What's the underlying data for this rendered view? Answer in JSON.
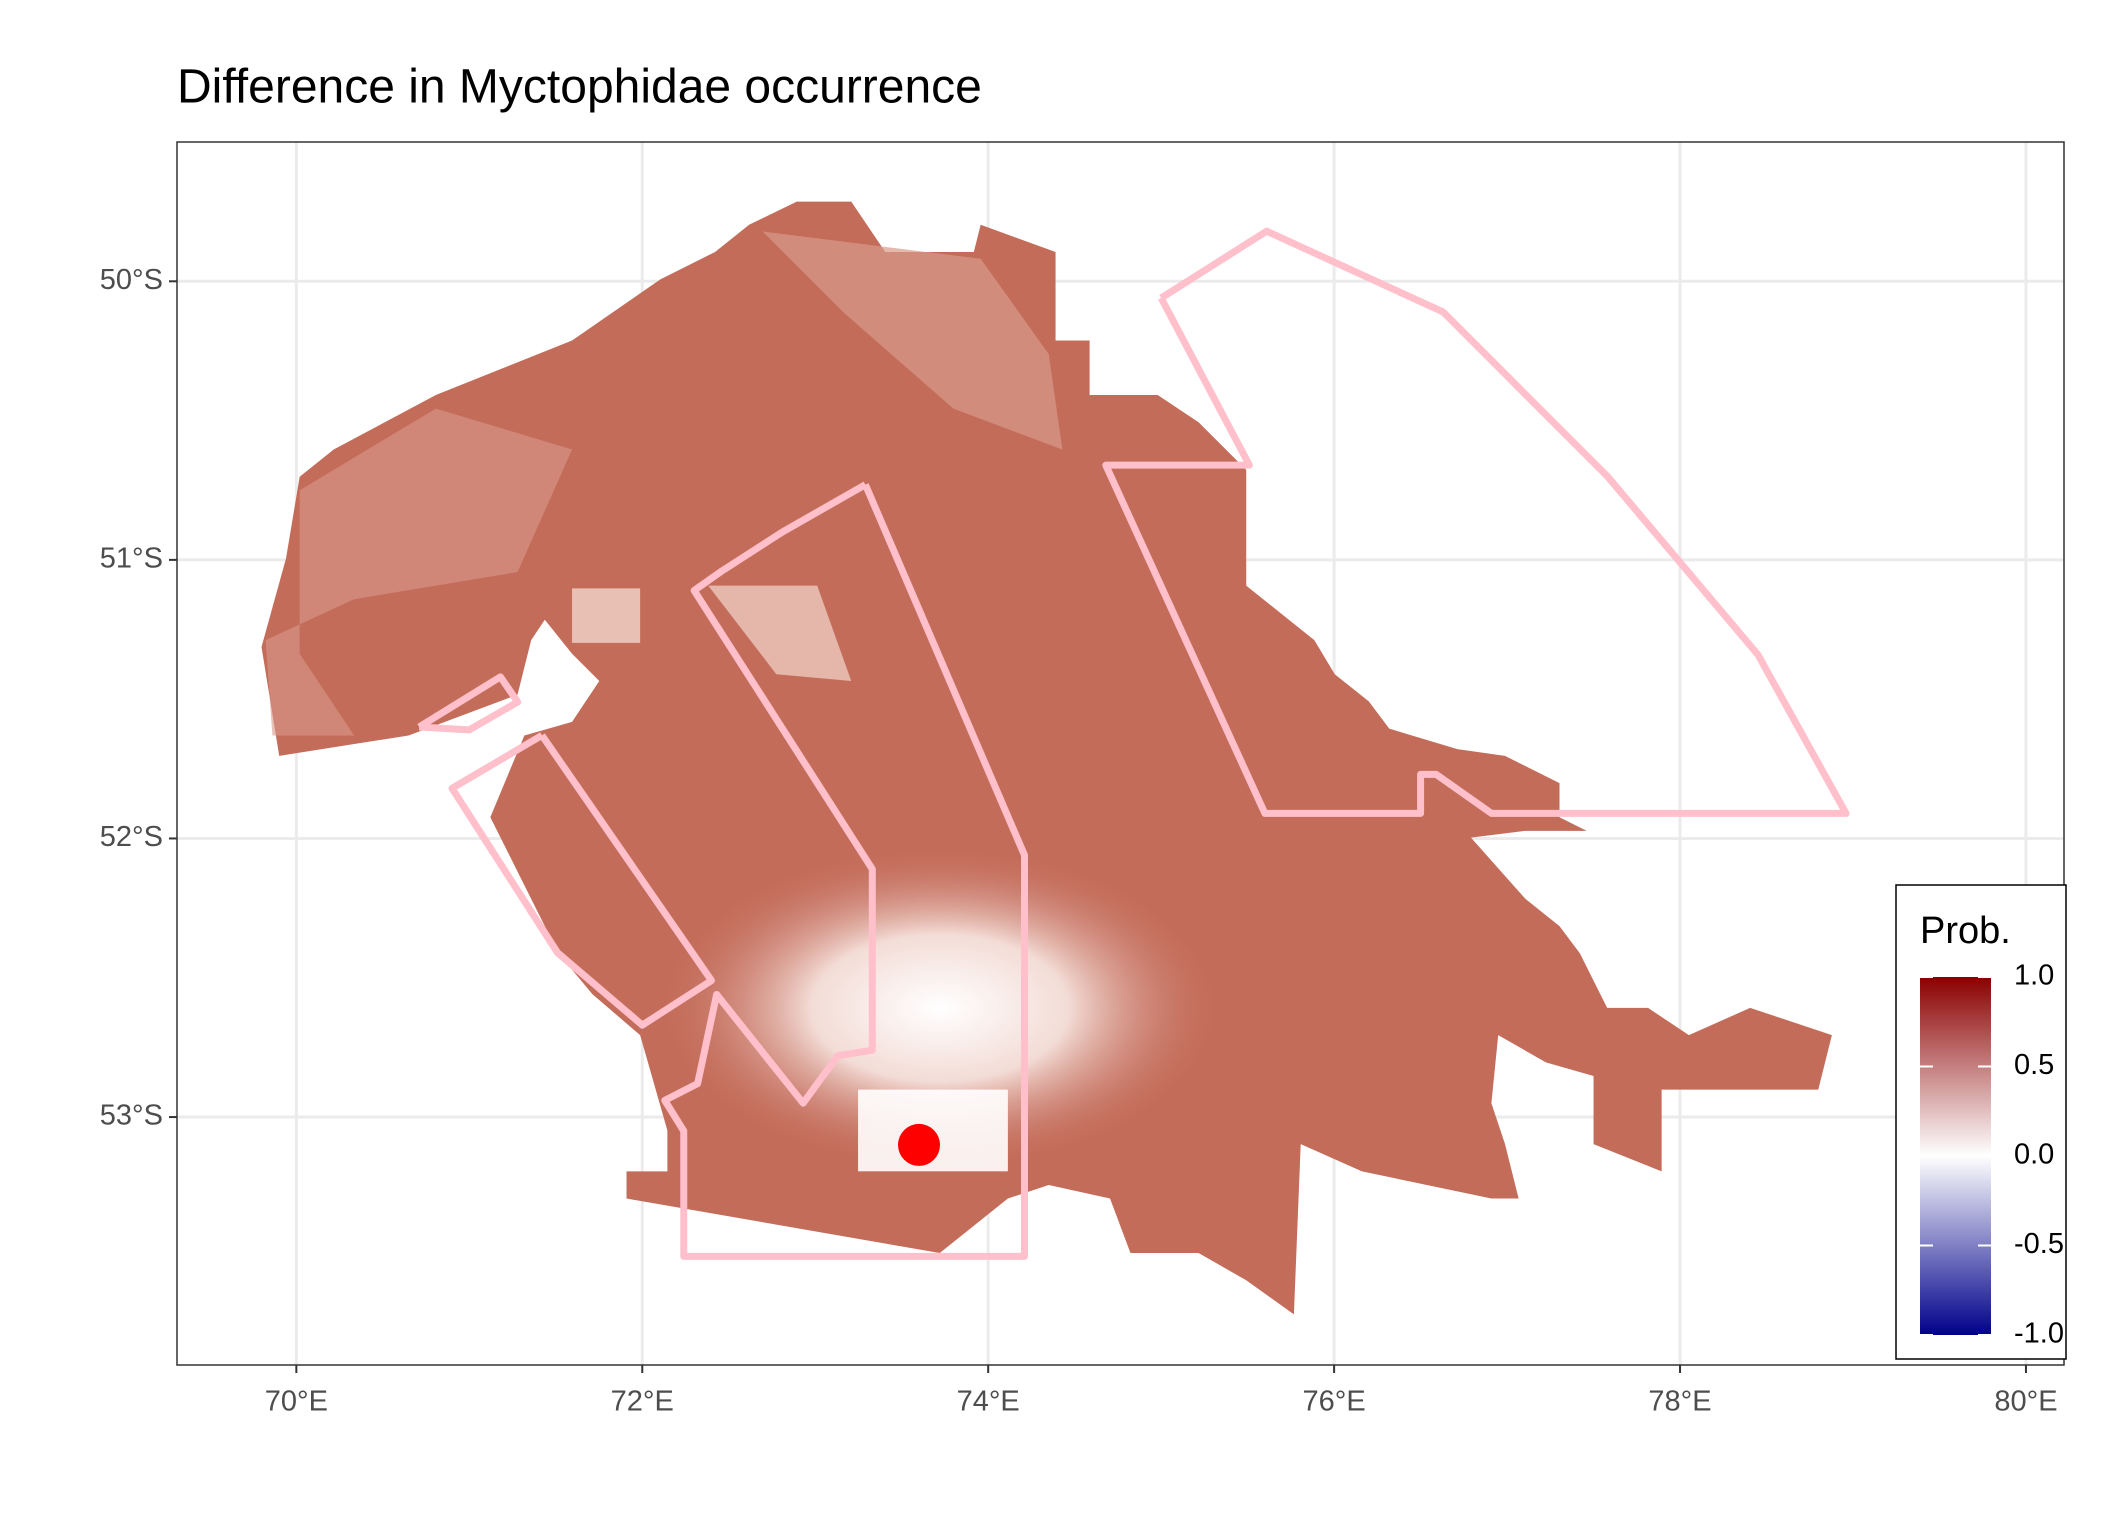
{
  "chart_data": {
    "type": "map",
    "title": "Difference in  Myctophidae occurrence",
    "xlim": [
      69.31,
      80.22
    ],
    "ylim": [
      -53.89,
      -49.5
    ],
    "xticks": [
      {
        "value": 70,
        "label": "70°E"
      },
      {
        "value": 72,
        "label": "72°E"
      },
      {
        "value": 74,
        "label": "74°E"
      },
      {
        "value": 76,
        "label": "76°E"
      },
      {
        "value": 78,
        "label": "78°E"
      },
      {
        "value": 80,
        "label": "80°E"
      }
    ],
    "yticks": [
      {
        "value": -50,
        "label": "50°S"
      },
      {
        "value": -51,
        "label": "51°S"
      },
      {
        "value": -52,
        "label": "52°S"
      },
      {
        "value": -53,
        "label": "53°S"
      }
    ],
    "grid": true,
    "polygon_color": "#ffc0cb",
    "polygons": [
      {
        "lon": [
          75.0,
          75.61,
          76.63,
          77.58,
          78.45,
          78.96,
          76.91,
          76.59,
          76.5,
          76.5,
          75.6,
          74.68,
          75.51,
          75.0
        ],
        "lat": [
          -50.06,
          -49.82,
          -50.11,
          -50.7,
          -51.34,
          -51.91,
          -51.91,
          -51.77,
          -51.77,
          -51.91,
          -51.91,
          -50.66,
          -50.66,
          -50.06
        ]
      },
      {
        "lon": [
          73.29,
          74.21,
          74.21,
          72.24,
          72.24,
          72.13,
          72.32,
          72.43,
          72.93,
          73.13,
          73.33,
          73.33,
          72.3,
          72.46,
          72.81,
          73.29
        ],
        "lat": [
          -50.73,
          -52.06,
          -53.5,
          -53.5,
          -53.05,
          -52.94,
          -52.88,
          -52.56,
          -52.95,
          -52.78,
          -52.76,
          -52.11,
          -51.11,
          -51.04,
          -50.9,
          -50.73
        ]
      },
      {
        "lon": [
          71.42,
          72.4,
          72.0,
          71.51,
          70.9,
          71.42
        ],
        "lat": [
          -51.63,
          -52.51,
          -52.67,
          -52.41,
          -51.82,
          -51.63
        ]
      },
      {
        "lon": [
          70.71,
          71.18,
          71.28,
          71.0,
          70.71
        ],
        "lat": [
          -51.6,
          -51.42,
          -51.51,
          -51.61,
          -51.6
        ]
      }
    ],
    "point": {
      "lon": 73.6,
      "lat": -53.1,
      "color": "#ff0000"
    },
    "legend": {
      "title": "Prob.",
      "limits": [
        -1,
        1
      ],
      "ticks": [
        {
          "value": 1,
          "label": "1.0"
        },
        0.5,
        {
          "value": 0,
          "label": "0.0"
        },
        -0.5,
        {
          "value": -1,
          "label": "-1.0"
        }
      ],
      "colors": [
        "#00008b",
        "#ffffff",
        "#8b0000"
      ]
    }
  }
}
